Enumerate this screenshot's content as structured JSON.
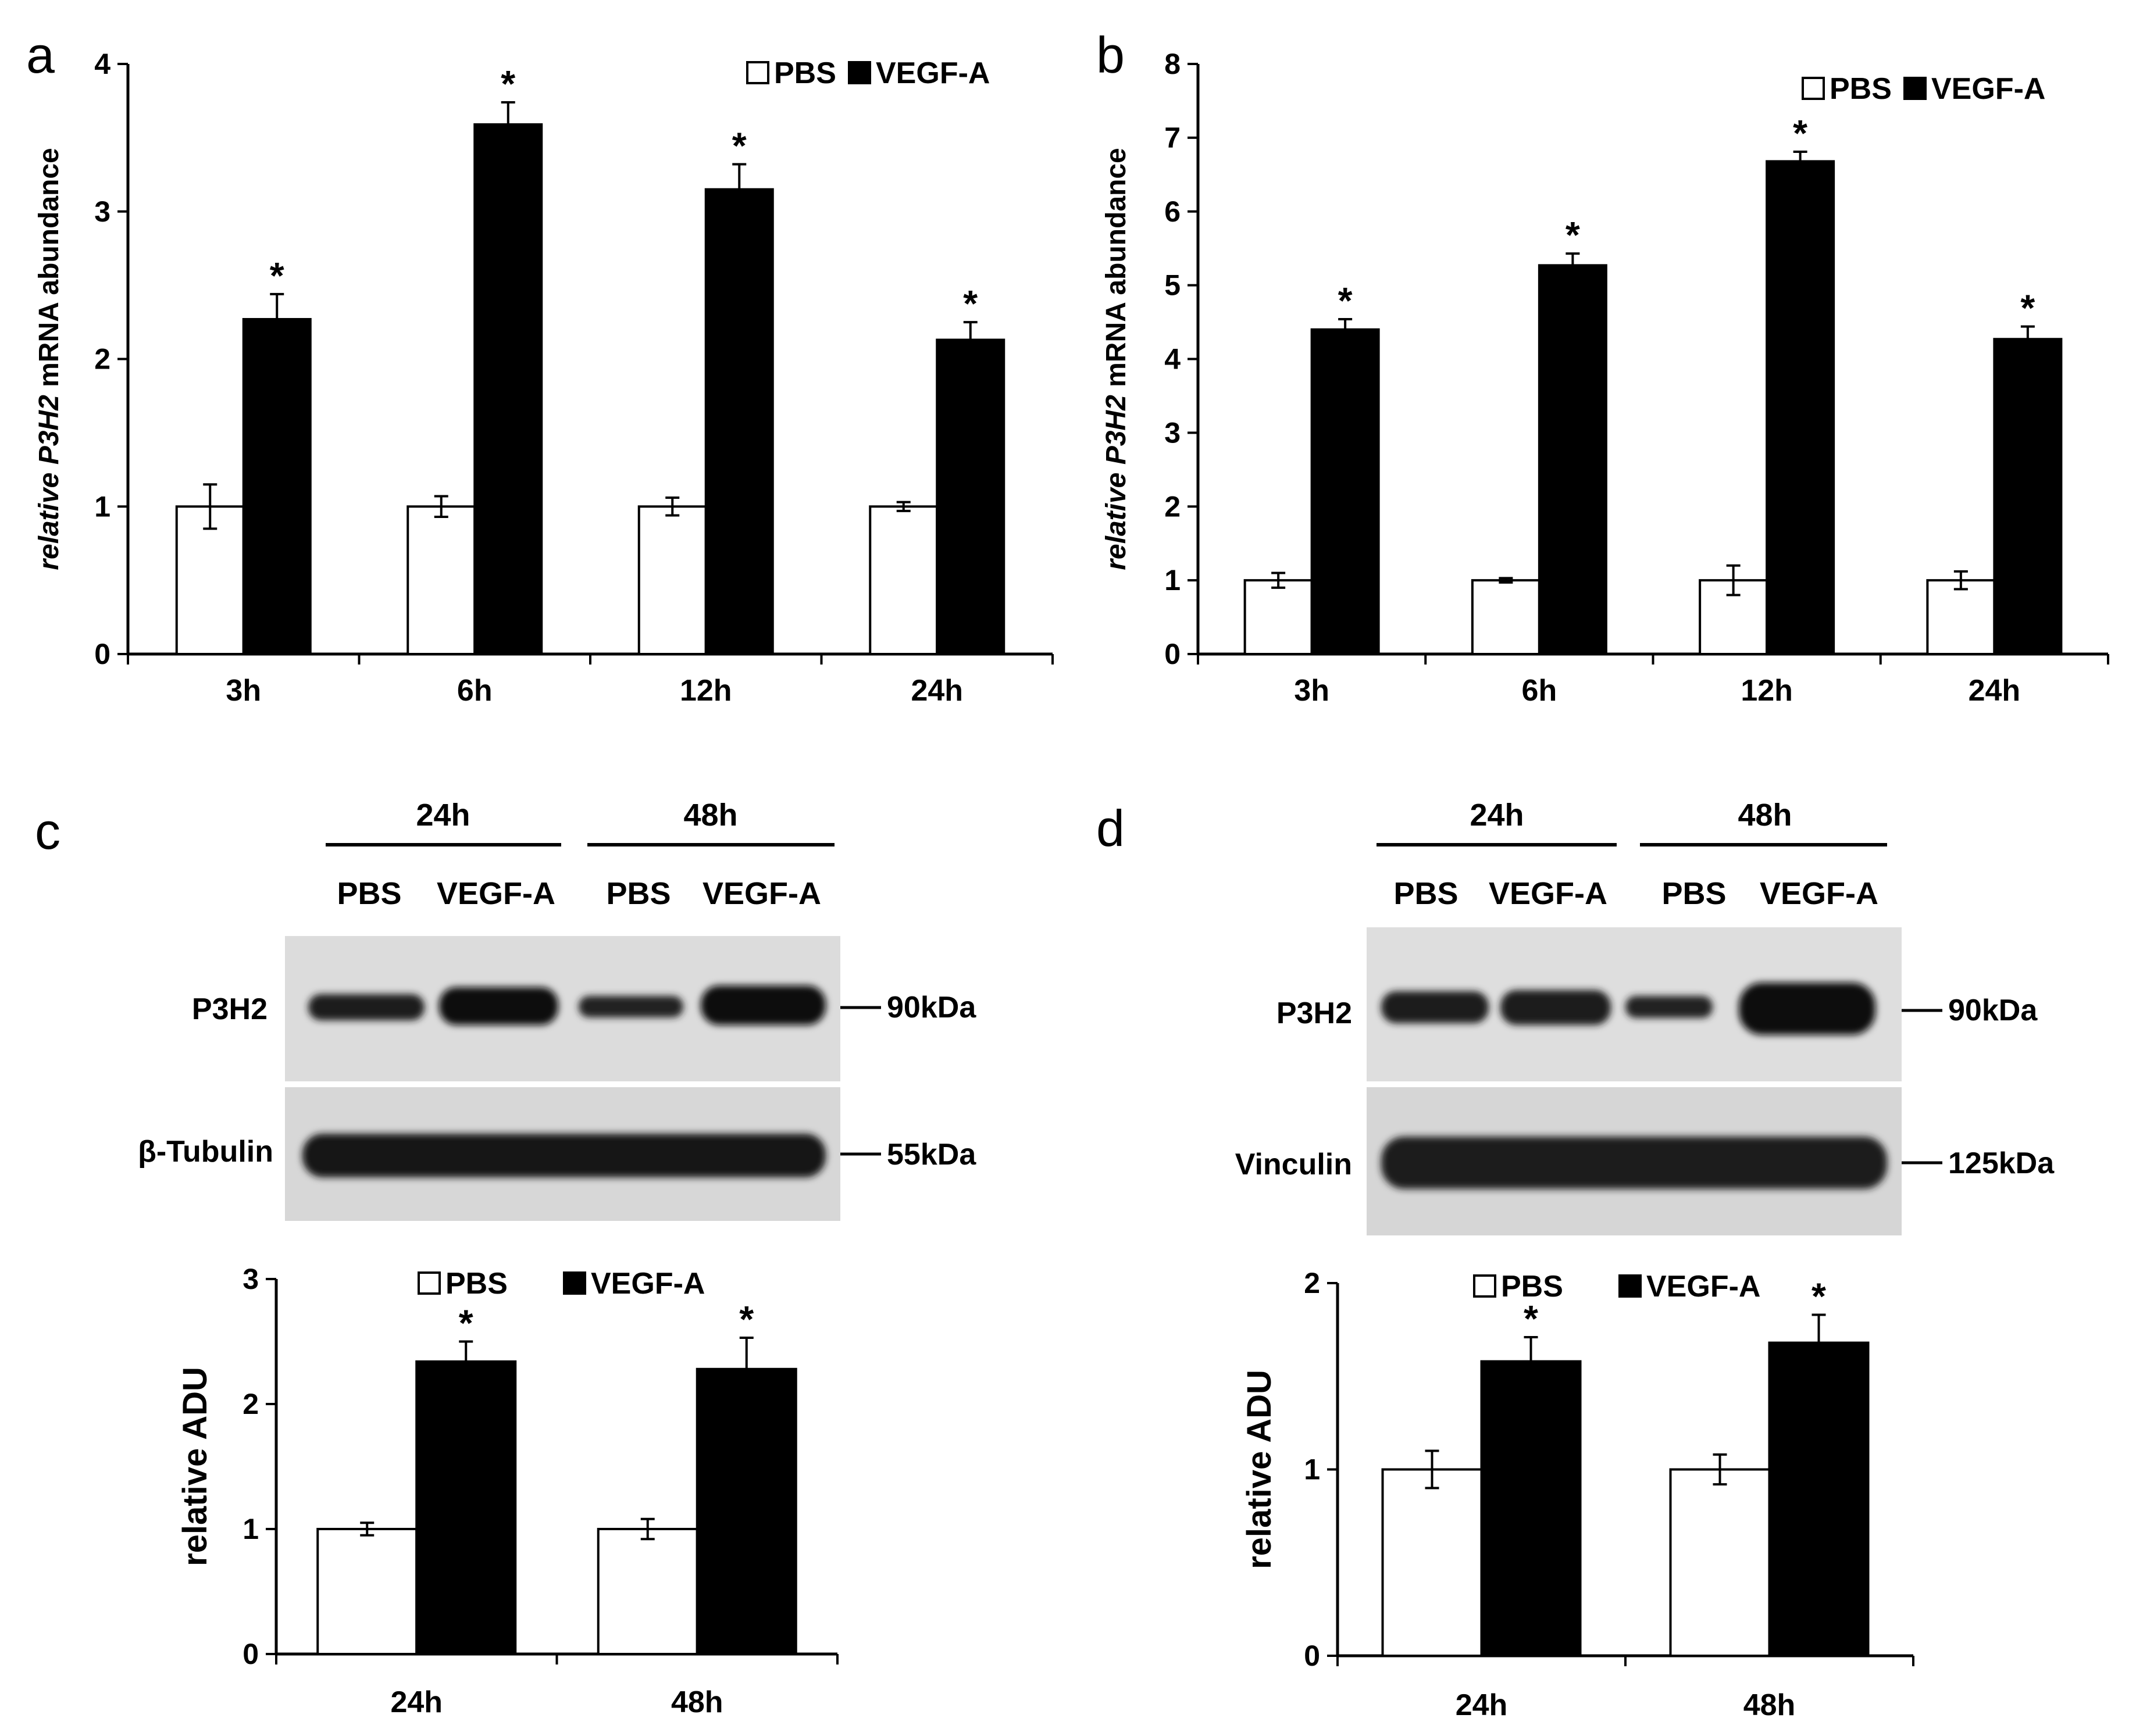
{
  "panels": {
    "a": {
      "letter": "a"
    },
    "b": {
      "letter": "b"
    },
    "c": {
      "letter": "c"
    },
    "d": {
      "letter": "d"
    }
  },
  "blots": {
    "c": {
      "groups": [
        "24h",
        "48h"
      ],
      "lanes": [
        "PBS",
        "VEGF-A",
        "PBS",
        "VEGF-A"
      ],
      "rows": [
        {
          "label": "P3H2",
          "marker": "90kDa"
        },
        {
          "label": "β-Tubulin",
          "marker": "55kDa"
        }
      ]
    },
    "d": {
      "groups": [
        "24h",
        "48h"
      ],
      "lanes": [
        "PBS",
        "VEGF-A",
        "PBS",
        "VEGF-A"
      ],
      "rows": [
        {
          "label": "P3H2",
          "marker": "90kDa"
        },
        {
          "label": "Vinculin",
          "marker": "125kDa"
        }
      ]
    }
  },
  "chart_data": [
    {
      "panel": "a",
      "type": "bar",
      "categories": [
        "3h",
        "6h",
        "12h",
        "24h"
      ],
      "series": [
        {
          "name": "PBS",
          "values": [
            1.0,
            1.0,
            1.0,
            1.0
          ],
          "errors": [
            0.15,
            0.07,
            0.06,
            0.03
          ],
          "color": "#ffffff"
        },
        {
          "name": "VEGF-A",
          "values": [
            2.27,
            3.59,
            3.15,
            2.13
          ],
          "errors": [
            0.17,
            0.15,
            0.17,
            0.12
          ],
          "color": "#000000"
        }
      ],
      "significance": [
        "*",
        "*",
        "*",
        "*"
      ],
      "ylabel_prefix": "relative ",
      "ylabel_gene": "P3H2",
      "ylabel_suffix": " mRNA abundance",
      "ylim": [
        0,
        4
      ],
      "yticks": [
        "0",
        "1",
        "2",
        "3",
        "4"
      ],
      "legend_position": "top-right",
      "grid": false
    },
    {
      "panel": "b",
      "type": "bar",
      "categories": [
        "3h",
        "6h",
        "12h",
        "24h"
      ],
      "series": [
        {
          "name": "PBS",
          "values": [
            1.0,
            1.0,
            1.0,
            1.0
          ],
          "errors": [
            0.1,
            0.03,
            0.2,
            0.12
          ],
          "color": "#ffffff"
        },
        {
          "name": "VEGF-A",
          "values": [
            4.4,
            5.27,
            6.68,
            4.27
          ],
          "errors": [
            0.14,
            0.16,
            0.13,
            0.17
          ],
          "color": "#000000"
        }
      ],
      "significance": [
        "*",
        "*",
        "*",
        "*"
      ],
      "ylabel_prefix": "relative ",
      "ylabel_gene": "P3H2",
      "ylabel_suffix": " mRNA abundance",
      "ylim": [
        0,
        8
      ],
      "yticks": [
        "0",
        "1",
        "2",
        "3",
        "4",
        "5",
        "6",
        "7",
        "8"
      ],
      "legend_position": "top-right",
      "grid": false
    },
    {
      "panel": "c",
      "type": "bar",
      "categories": [
        "24h",
        "48h"
      ],
      "series": [
        {
          "name": "PBS",
          "values": [
            1.0,
            1.0
          ],
          "errors": [
            0.05,
            0.08
          ],
          "color": "#ffffff"
        },
        {
          "name": "VEGF-A",
          "values": [
            2.34,
            2.28
          ],
          "errors": [
            0.16,
            0.25
          ],
          "color": "#000000"
        }
      ],
      "significance": [
        "*",
        "*"
      ],
      "ylabel": "relative ADU",
      "ylim": [
        0,
        3
      ],
      "yticks": [
        "0",
        "1",
        "2",
        "3"
      ],
      "legend_position": "top-center",
      "grid": false
    },
    {
      "panel": "d",
      "type": "bar",
      "categories": [
        "24h",
        "48h"
      ],
      "series": [
        {
          "name": "PBS",
          "values": [
            1.0,
            1.0
          ],
          "errors": [
            0.1,
            0.08
          ],
          "color": "#ffffff"
        },
        {
          "name": "VEGF-A",
          "values": [
            1.58,
            1.68
          ],
          "errors": [
            0.13,
            0.15
          ],
          "color": "#000000"
        }
      ],
      "significance": [
        "*",
        "*"
      ],
      "ylabel": "relative ADU",
      "ylim": [
        0,
        2
      ],
      "yticks": [
        "0",
        "1",
        "2"
      ],
      "legend_position": "top-center",
      "grid": false
    }
  ]
}
